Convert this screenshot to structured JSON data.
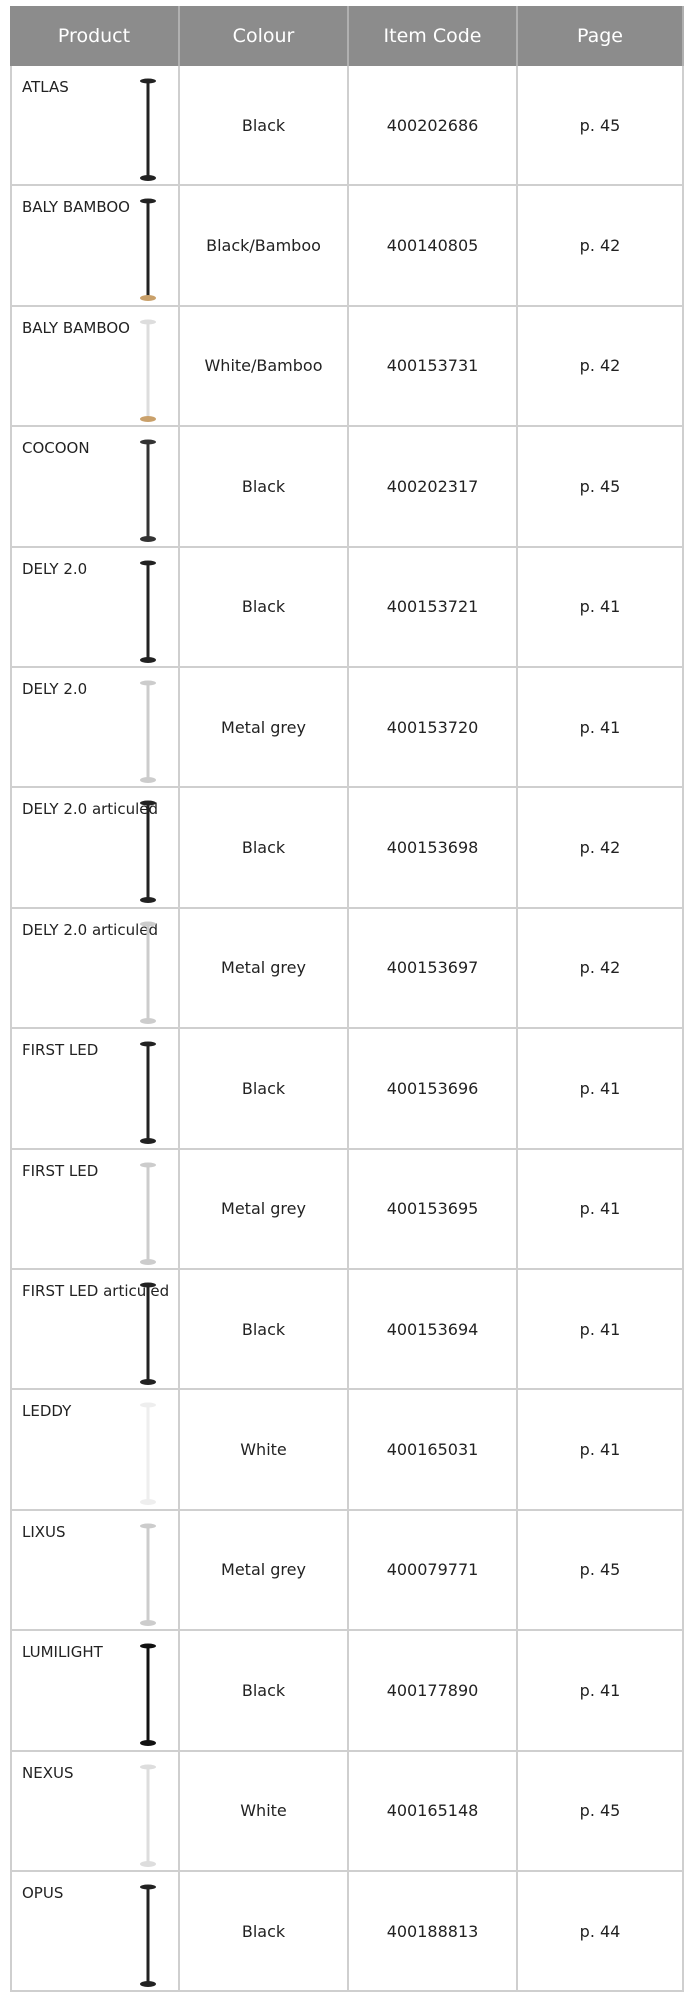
{
  "header": {
    "columns": [
      "Product",
      "Colour",
      "Item Code",
      "Page"
    ]
  },
  "table": {
    "rows": [
      [
        "ATLAS",
        "Black",
        "400202686",
        "p. 45"
      ],
      [
        "BALY BAMBOO",
        "Black/Bamboo",
        "400140805",
        "p. 42"
      ],
      [
        "BALY BAMBOO",
        "White/Bamboo",
        "400153731",
        "p. 42"
      ],
      [
        "COCOON",
        "Black",
        "400202317",
        "p. 45"
      ],
      [
        "DELY 2.0",
        "Black",
        "400153721",
        "p. 41"
      ],
      [
        "DELY 2.0",
        "Metal grey",
        "400153720",
        "p. 41"
      ],
      [
        "DELY 2.0 articuled",
        "Black",
        "400153698",
        "p. 42"
      ],
      [
        "DELY 2.0 articuled",
        "Metal grey",
        "400153697",
        "p. 42"
      ],
      [
        "FIRST LED",
        "Black",
        "400153696",
        "p. 41"
      ],
      [
        "FIRST LED",
        "Metal grey",
        "400153695",
        "p. 41"
      ],
      [
        "FIRST LED articuled",
        "Black",
        "400153694",
        "p. 41"
      ],
      [
        "LEDDY",
        "White",
        "400165031",
        "p. 41"
      ],
      [
        "LIXUS",
        "Metal grey",
        "400079771",
        "p. 45"
      ],
      [
        "LUMILIGHT",
        "Black",
        "400177890",
        "p. 41"
      ],
      [
        "NEXUS",
        "White",
        "400165148",
        "p. 45"
      ],
      [
        "OPUS",
        "Black",
        "400188813",
        "p. 44"
      ]
    ]
  }
}
